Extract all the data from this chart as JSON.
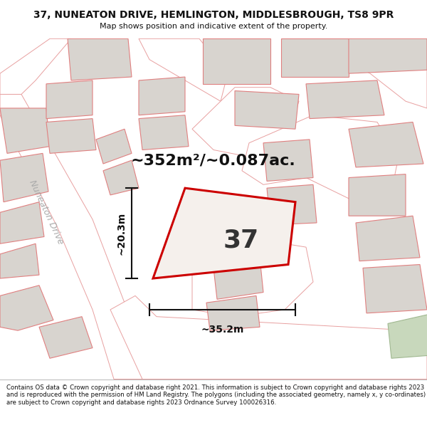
{
  "title_line1": "37, NUNEATON DRIVE, HEMLINGTON, MIDDLESBROUGH, TS8 9PR",
  "title_line2": "Map shows position and indicative extent of the property.",
  "area_text": "~352m²/~0.087ac.",
  "plot_number": "37",
  "dim_width": "~35.2m",
  "dim_height": "~20.3m",
  "street_label": "Nuneaton Drive",
  "footer_text": "Contains OS data © Crown copyright and database right 2021. This information is subject to Crown copyright and database rights 2023 and is reproduced with the permission of HM Land Registry. The polygons (including the associated geometry, namely x, y co-ordinates) are subject to Crown copyright and database rights 2023 Ordnance Survey 100026316.",
  "bg_color": "#f7f4f1",
  "plot_edge": "#cc0000",
  "neighbor_fill": "#d8d4cf",
  "neighbor_edge": "#e08080",
  "road_fill": "#ffffff",
  "road_edge": "#e8a0a0",
  "green_fill": "#c8d8bc",
  "title_bg": "#ffffff",
  "footer_bg": "#ffffff",
  "dim_color": "#111111",
  "street_label_color": "#aaaaaa",
  "area_fontsize": 16,
  "plot_num_fontsize": 26
}
